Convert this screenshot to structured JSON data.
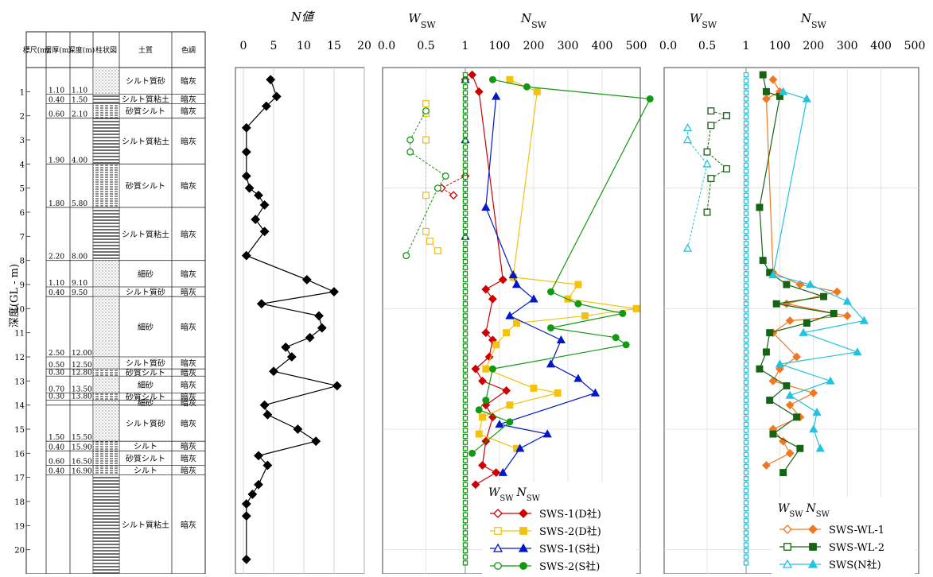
{
  "labels": {
    "y_axis_title": "深度(GL - m)",
    "n_title": "N値",
    "wsw": "W",
    "nsw": "N",
    "sub": "sw"
  },
  "log_columns": [
    "標尺(m)",
    "層厚(m)",
    "深度(m)",
    "柱状図",
    "土質",
    "色調"
  ],
  "log_layers": [
    {
      "top": 0.0,
      "bottom": 1.1,
      "thickness": "1.10",
      "depth": "1.10",
      "soil": "シルト質砂",
      "color": "暗灰",
      "pattern": "sand"
    },
    {
      "top": 1.1,
      "bottom": 1.5,
      "thickness": "0.40",
      "depth": "1.50",
      "soil": "シルト質粘土",
      "color": "暗灰",
      "pattern": "clay"
    },
    {
      "top": 1.5,
      "bottom": 2.1,
      "thickness": "0.60",
      "depth": "2.10",
      "soil": "砂質シルト",
      "color": "暗灰",
      "pattern": "silt"
    },
    {
      "top": 2.1,
      "bottom": 4.0,
      "thickness": "1.90",
      "depth": "4.00",
      "soil": "シルト質粘土",
      "color": "暗灰",
      "pattern": "clay"
    },
    {
      "top": 4.0,
      "bottom": 5.8,
      "thickness": "1.80",
      "depth": "5.80",
      "soil": "砂質シルト",
      "color": "暗灰",
      "pattern": "silt"
    },
    {
      "top": 5.8,
      "bottom": 8.0,
      "thickness": "2.20",
      "depth": "8.00",
      "soil": "シルト質粘土",
      "color": "暗灰",
      "pattern": "clay"
    },
    {
      "top": 8.0,
      "bottom": 9.1,
      "thickness": "1.10",
      "depth": "9.10",
      "soil": "細砂",
      "color": "暗灰",
      "pattern": "sand"
    },
    {
      "top": 9.1,
      "bottom": 9.5,
      "thickness": "0.40",
      "depth": "9.50",
      "soil": "シルト質砂",
      "color": "暗灰",
      "pattern": "sand"
    },
    {
      "top": 9.5,
      "bottom": 12.0,
      "thickness": "2.50",
      "depth": "12.00",
      "soil": "細砂",
      "color": "暗灰",
      "pattern": "sand"
    },
    {
      "top": 12.0,
      "bottom": 12.5,
      "thickness": "0.50",
      "depth": "12.50",
      "soil": "シルト質砂",
      "color": "暗灰",
      "pattern": "sand"
    },
    {
      "top": 12.5,
      "bottom": 12.8,
      "thickness": "0.30",
      "depth": "12.80",
      "soil": "砂質シルト",
      "color": "暗灰",
      "pattern": "silt"
    },
    {
      "top": 12.8,
      "bottom": 13.5,
      "thickness": "0.70",
      "depth": "13.50",
      "soil": "細砂",
      "color": "暗灰",
      "pattern": "sand"
    },
    {
      "top": 13.5,
      "bottom": 13.8,
      "thickness": "0.30",
      "depth": "13.80",
      "soil": "砂質シルト",
      "color": "暗灰",
      "pattern": "silt"
    },
    {
      "top": 13.8,
      "bottom": 14.0,
      "thickness": "",
      "depth": "",
      "soil": "細砂",
      "color": "暗灰",
      "pattern": "sand"
    },
    {
      "top": 14.0,
      "bottom": 15.5,
      "thickness": "1.50",
      "depth": "15.50",
      "soil": "シルト質砂",
      "color": "暗灰",
      "pattern": "sand"
    },
    {
      "top": 15.5,
      "bottom": 15.9,
      "thickness": "0.40",
      "depth": "15.90",
      "soil": "シルト",
      "color": "暗灰",
      "pattern": "silt"
    },
    {
      "top": 15.9,
      "bottom": 16.5,
      "thickness": "0.60",
      "depth": "16.50",
      "soil": "砂質シルト",
      "color": "暗灰",
      "pattern": "silt"
    },
    {
      "top": 16.5,
      "bottom": 16.9,
      "thickness": "0.40",
      "depth": "16.90",
      "soil": "シルト",
      "color": "暗灰",
      "pattern": "silt"
    },
    {
      "top": 16.9,
      "bottom": 21.0,
      "thickness": "",
      "depth": "",
      "soil": "シルト質粘土",
      "color": "暗灰",
      "pattern": "clay"
    }
  ],
  "chart_data": [
    {
      "type": "line",
      "title": "N値",
      "ylabel": "深度(GL - m)",
      "ylim": [
        0,
        21
      ],
      "y_inverted": true,
      "xlim": [
        0,
        20
      ],
      "xticks": [
        0,
        5,
        10,
        15,
        20
      ],
      "grid": true,
      "series": [
        {
          "color": "#000000",
          "marker": "diamond",
          "filled": true,
          "points": [
            [
              4.5,
              0.5
            ],
            [
              5.5,
              1.2
            ],
            [
              3.8,
              1.6
            ],
            [
              0.5,
              2.5
            ],
            [
              0.5,
              3.5
            ],
            [
              0.5,
              4.5
            ],
            [
              1.0,
              5.0
            ],
            [
              2.5,
              5.3
            ],
            [
              3.5,
              5.7
            ],
            [
              2.0,
              6.3
            ],
            [
              3.5,
              6.8
            ],
            [
              0.5,
              7.8
            ],
            [
              10.5,
              8.8
            ],
            [
              15.0,
              9.3
            ],
            [
              3.0,
              9.8
            ],
            [
              12.5,
              10.3
            ],
            [
              13.0,
              10.8
            ],
            [
              11.0,
              11.2
            ],
            [
              7.0,
              11.6
            ],
            [
              8.0,
              12.0
            ],
            [
              5.0,
              12.6
            ],
            [
              15.5,
              13.2
            ],
            [
              3.5,
              14.0
            ],
            [
              4.0,
              14.4
            ],
            [
              9.0,
              15.0
            ],
            [
              12.0,
              15.5
            ],
            [
              2.5,
              16.1
            ],
            [
              4.0,
              16.5
            ],
            [
              2.5,
              17.3
            ],
            [
              1.5,
              17.7
            ],
            [
              0.5,
              18.1
            ],
            [
              0.5,
              18.6
            ],
            [
              0.5,
              20.4
            ]
          ]
        }
      ]
    },
    {
      "type": "line",
      "xlabel_w": "Wsw",
      "xlabel_n": "Nsw",
      "xlim_w": [
        0,
        1
      ],
      "xticks_w": [
        "0.0",
        "0.5",
        "1"
      ],
      "xlim_n": [
        0,
        500
      ],
      "xticks_n": [
        "100",
        "200",
        "300",
        "400",
        "500"
      ],
      "ylim": [
        0,
        21
      ],
      "legend": "bottom-right",
      "legend_title": "Wsw Nsw",
      "series": [
        {
          "name": "SWS-1(D社)",
          "color": "#cc0000",
          "marker": "diamond",
          "w": [
            [
              1,
              0.5
            ],
            [
              1,
              4.5
            ],
            [
              0.7,
              5.0
            ],
            [
              0.85,
              5.3
            ]
          ],
          "n": [
            [
              20,
              0.3
            ],
            [
              40,
              1.0
            ],
            [
              110,
              8.8
            ],
            [
              60,
              9.2
            ],
            [
              80,
              9.6
            ],
            [
              60,
              11.0
            ],
            [
              80,
              11.3
            ],
            [
              70,
              12.0
            ],
            [
              30,
              12.5
            ],
            [
              50,
              13.0
            ],
            [
              120,
              13.4
            ],
            [
              60,
              14.0
            ],
            [
              80,
              14.5
            ],
            [
              60,
              15.5
            ],
            [
              50,
              16.5
            ],
            [
              90,
              16.8
            ],
            [
              30,
              17.3
            ]
          ]
        },
        {
          "name": "SWS-2(D社)",
          "color": "#f4c20d",
          "marker": "square",
          "w": [
            [
              0.5,
              1.5
            ],
            [
              0.5,
              1.9
            ],
            [
              0.5,
              3.0
            ],
            [
              0.5,
              5.3
            ],
            [
              0.5,
              6.8
            ],
            [
              0.55,
              7.2
            ],
            [
              0.65,
              7.6
            ]
          ],
          "n": [
            [
              130,
              0.5
            ],
            [
              210,
              1.0
            ],
            [
              140,
              8.7
            ],
            [
              330,
              9.0
            ],
            [
              300,
              9.6
            ],
            [
              500,
              10.0
            ],
            [
              350,
              10.3
            ],
            [
              150,
              10.6
            ],
            [
              120,
              11.0
            ],
            [
              90,
              11.5
            ],
            [
              60,
              12.5
            ],
            [
              200,
              13.3
            ],
            [
              270,
              13.5
            ],
            [
              130,
              14.0
            ],
            [
              50,
              14.5
            ],
            [
              40,
              15.2
            ],
            [
              150,
              15.8
            ]
          ]
        },
        {
          "name": "SWS-1(S社)",
          "color": "#0018c8",
          "marker": "triangle",
          "w": [
            [
              1,
              0.5
            ],
            [
              1,
              3.0
            ],
            [
              1,
              7.0
            ]
          ],
          "n": [
            [
              90,
              1.2
            ],
            [
              60,
              5.8
            ],
            [
              140,
              8.6
            ],
            [
              150,
              9.0
            ],
            [
              200,
              9.6
            ],
            [
              130,
              10.3
            ],
            [
              280,
              11.3
            ],
            [
              250,
              12.3
            ],
            [
              330,
              12.9
            ],
            [
              380,
              13.5
            ],
            [
              100,
              14.8
            ],
            [
              240,
              15.2
            ],
            [
              160,
              15.8
            ],
            [
              110,
              16.8
            ]
          ]
        },
        {
          "name": "SWS-2(S社)",
          "color": "#119911",
          "marker": "circle",
          "w": [
            [
              0.5,
              1.8
            ],
            [
              0.3,
              3.0
            ],
            [
              0.3,
              3.5
            ],
            [
              0.75,
              4.5
            ],
            [
              0.65,
              5.0
            ],
            [
              0.25,
              7.8
            ]
          ],
          "n": [
            [
              80,
              0.5
            ],
            [
              180,
              0.8
            ],
            [
              540,
              1.3
            ],
            [
              250,
              9.3
            ],
            [
              330,
              9.8
            ],
            [
              460,
              10.2
            ],
            [
              250,
              10.8
            ],
            [
              440,
              11.2
            ],
            [
              470,
              11.5
            ],
            [
              80,
              12.5
            ],
            [
              60,
              13.8
            ],
            [
              40,
              14.2
            ],
            [
              130,
              14.7
            ],
            [
              20,
              16.0
            ]
          ]
        }
      ]
    },
    {
      "type": "line",
      "xlabel_w": "Wsw",
      "xlabel_n": "Nsw",
      "xlim_w": [
        0,
        1
      ],
      "xticks_w": [
        "0.0",
        "0.5",
        "1"
      ],
      "xlim_n": [
        0,
        500
      ],
      "xticks_n": [
        "100",
        "200",
        "300",
        "400",
        "500"
      ],
      "ylim": [
        0,
        21
      ],
      "legend": "bottom-right",
      "legend_title": "Wsw Nsw",
      "series": [
        {
          "name": "SWS-WL-1",
          "color": "#f07820",
          "marker": "diamond",
          "w": [],
          "n": [
            [
              80,
              0.5
            ],
            [
              100,
              1.0
            ],
            [
              60,
              1.3
            ],
            [
              80,
              8.5
            ],
            [
              160,
              9.0
            ],
            [
              270,
              9.3
            ],
            [
              120,
              9.8
            ],
            [
              300,
              10.3
            ],
            [
              130,
              10.5
            ],
            [
              80,
              11.0
            ],
            [
              150,
              12.0
            ],
            [
              100,
              12.5
            ],
            [
              80,
              13.0
            ],
            [
              200,
              13.5
            ],
            [
              130,
              14.0
            ],
            [
              160,
              14.5
            ],
            [
              80,
              15.0
            ],
            [
              110,
              15.5
            ],
            [
              130,
              16.0
            ],
            [
              60,
              16.5
            ]
          ]
        },
        {
          "name": "SWS-WL-2",
          "color": "#146414",
          "marker": "square",
          "w": [
            [
              0.55,
              1.8
            ],
            [
              0.75,
              2.0
            ],
            [
              0.55,
              2.4
            ],
            [
              0.5,
              3.5
            ],
            [
              0.75,
              4.2
            ],
            [
              0.55,
              4.6
            ],
            [
              0.5,
              6.0
            ]
          ],
          "n": [
            [
              50,
              0.3
            ],
            [
              60,
              1.0
            ],
            [
              100,
              1.2
            ],
            [
              40,
              5.8
            ],
            [
              50,
              8.0
            ],
            [
              70,
              8.5
            ],
            [
              120,
              9.0
            ],
            [
              230,
              9.5
            ],
            [
              90,
              9.8
            ],
            [
              260,
              10.2
            ],
            [
              180,
              10.6
            ],
            [
              70,
              11.0
            ],
            [
              60,
              11.8
            ],
            [
              40,
              12.5
            ],
            [
              120,
              13.2
            ],
            [
              70,
              13.8
            ],
            [
              150,
              14.5
            ],
            [
              80,
              15.2
            ],
            [
              160,
              15.8
            ],
            [
              110,
              16.8
            ]
          ]
        },
        {
          "name": "SWS(N社)",
          "color": "#22c2e0",
          "marker": "triangle",
          "w": [
            [
              0.25,
              2.5
            ],
            [
              0.25,
              3.0
            ],
            [
              0.5,
              4.0
            ],
            [
              0.25,
              7.5
            ]
          ],
          "n": [
            [
              110,
              1.0
            ],
            [
              180,
              1.3
            ],
            [
              80,
              8.6
            ],
            [
              190,
              9.0
            ],
            [
              300,
              9.7
            ],
            [
              350,
              10.5
            ],
            [
              170,
              11.0
            ],
            [
              330,
              11.8
            ],
            [
              100,
              12.3
            ],
            [
              250,
              13.0
            ],
            [
              130,
              13.6
            ],
            [
              210,
              14.3
            ],
            [
              200,
              15.0
            ],
            [
              220,
              15.8
            ]
          ]
        }
      ]
    }
  ]
}
